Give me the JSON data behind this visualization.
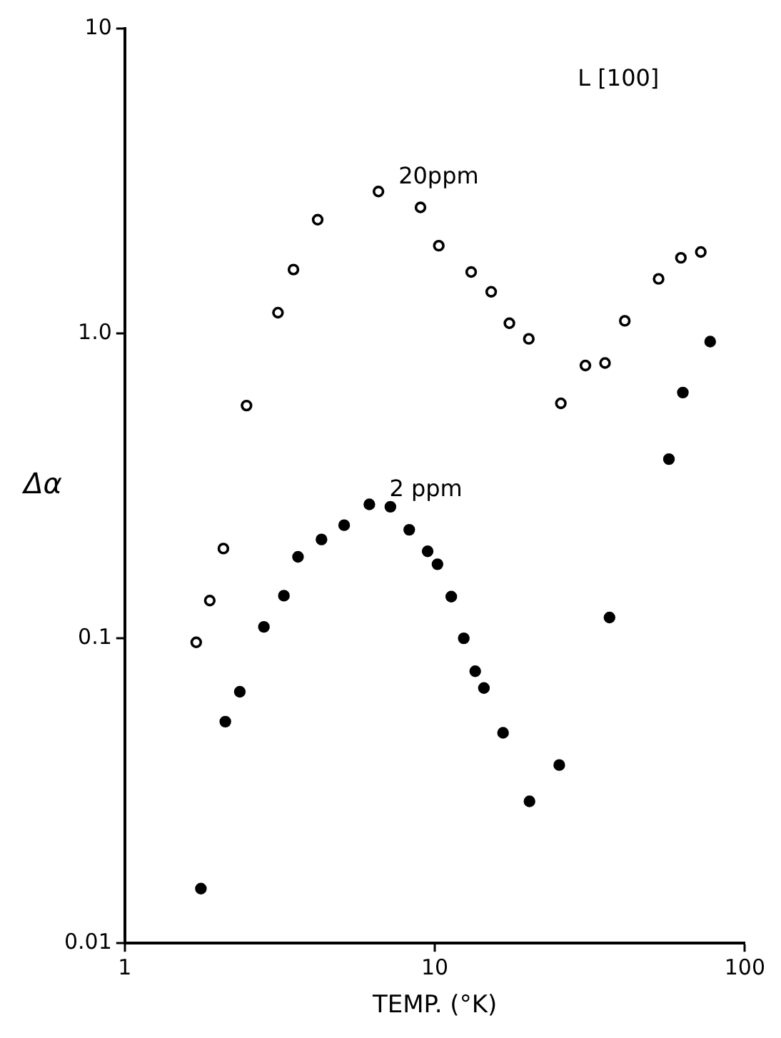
{
  "chart_data": {
    "type": "scatter",
    "xlabel": "TEMP. (°K)",
    "ylabel": "Δα",
    "annotations": [
      "L [100]"
    ],
    "log": "xy",
    "grid": false,
    "legend": false,
    "marker": "circle",
    "xlim": [
      1,
      100
    ],
    "xticks": [
      1,
      10,
      100
    ],
    "ylim": [
      0.01,
      10
    ],
    "yticks": [
      0.01,
      0.1,
      {
        "value": 1,
        "label": "1.0"
      },
      10
    ],
    "series": [
      {
        "name": "20ppm",
        "color": "#000000",
        "x": [
          1.7,
          1.88,
          2.08,
          2.47,
          3.12,
          3.5,
          4.19,
          6.58,
          8.99,
          10.3,
          13.1,
          15.2,
          17.4,
          20.1,
          25.5,
          30.6,
          35.4,
          41.0,
          52.7,
          62.2,
          72.1
        ],
        "values": [
          0.097,
          0.133,
          0.197,
          0.58,
          1.17,
          1.62,
          2.36,
          2.92,
          2.59,
          1.94,
          1.59,
          1.37,
          1.08,
          0.96,
          0.59,
          0.785,
          0.8,
          1.1,
          1.51,
          1.77,
          1.85
        ]
      },
      {
        "name": "2 ppm",
        "color": "#000000",
        "x": [
          1.76,
          2.11,
          2.35,
          2.81,
          3.26,
          3.62,
          4.31,
          5.1,
          6.15,
          7.19,
          8.27,
          9.48,
          10.2,
          11.3,
          12.4,
          13.5,
          14.4,
          16.6,
          20.2,
          25.2,
          36.6,
          56.9,
          63.1,
          77.3
        ],
        "values": [
          0.0151,
          0.0533,
          0.0668,
          0.109,
          0.138,
          0.185,
          0.211,
          0.235,
          0.275,
          0.27,
          0.227,
          0.193,
          0.175,
          0.137,
          0.1,
          0.078,
          0.0687,
          0.049,
          0.0292,
          0.0384,
          0.117,
          0.387,
          0.64,
          0.94
        ]
      }
    ]
  }
}
